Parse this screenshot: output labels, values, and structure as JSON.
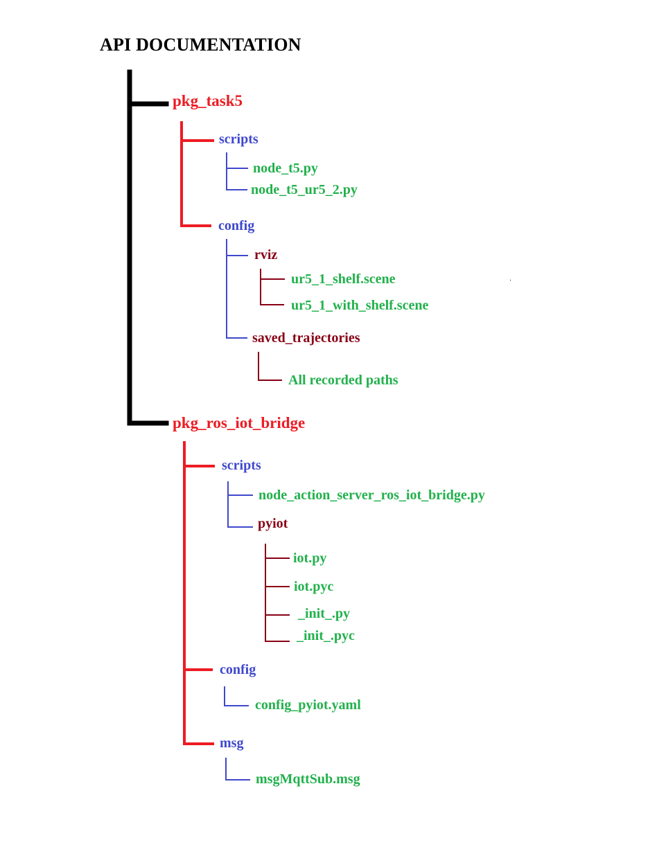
{
  "title": "API DOCUMENTATION",
  "colors": {
    "root_line": "#000000",
    "package": "#ed1c24",
    "folder": "#3f48cc",
    "subfolder": "#880015",
    "file": "#22b14c"
  },
  "tree": {
    "pkg_task5": {
      "label": "pkg_task5",
      "scripts": {
        "label": "scripts",
        "files": [
          "node_t5.py",
          "node_t5_ur5_2.py"
        ]
      },
      "config": {
        "label": "config",
        "rviz": {
          "label": "rviz",
          "files": [
            "ur5_1_shelf.scene",
            "ur5_1_with_shelf.scene"
          ]
        },
        "saved_trajectories": {
          "label": "saved_trajectories",
          "files": [
            "All recorded paths"
          ]
        }
      }
    },
    "pkg_ros_iot_bridge": {
      "label": "pkg_ros_iot_bridge",
      "scripts": {
        "label": "scripts",
        "files": [
          "node_action_server_ros_iot_bridge.py"
        ],
        "pyiot": {
          "label": "pyiot",
          "files": [
            "iot.py",
            "iot.pyc",
            "_init_.py",
            "_init_.pyc"
          ]
        }
      },
      "config": {
        "label": "config",
        "files": [
          "config_pyiot.yaml"
        ]
      },
      "msg": {
        "label": "msg",
        "files": [
          "msgMqttSub.msg"
        ]
      }
    }
  }
}
